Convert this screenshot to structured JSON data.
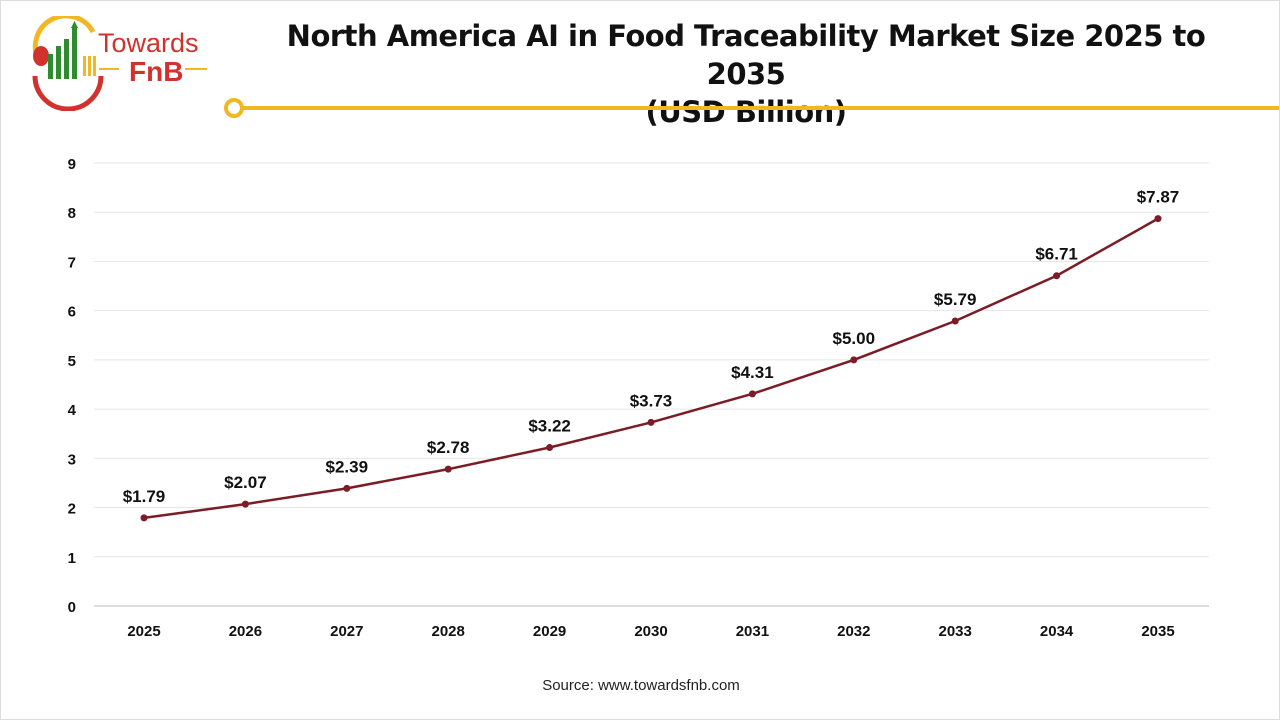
{
  "logo": {
    "line1": "Towards",
    "line2": "FnB"
  },
  "chart_data": {
    "type": "line",
    "title": "North America AI in Food Traceability Market Size 2025 to 2035",
    "subtitle": "(USD Billion)",
    "categories": [
      "2025",
      "2026",
      "2027",
      "2028",
      "2029",
      "2030",
      "2031",
      "2032",
      "2033",
      "2034",
      "2035"
    ],
    "values": [
      1.79,
      2.07,
      2.39,
      2.78,
      3.22,
      3.73,
      4.31,
      5.0,
      5.79,
      6.71,
      7.87
    ],
    "data_labels": [
      "$1.79",
      "$2.07",
      "$2.39",
      "$2.78",
      "$3.22",
      "$3.73",
      "$4.31",
      "$5.00",
      "$5.79",
      "$6.71",
      "$7.87"
    ],
    "yticks": [
      "0",
      "1",
      "2",
      "3",
      "4",
      "5",
      "6",
      "7",
      "8",
      "9"
    ],
    "ylim": [
      0,
      9
    ],
    "grid": true,
    "line_color": "#7b1c26",
    "accent_color": "#f2b824"
  },
  "source": "Source: www.towardsfnb.com"
}
